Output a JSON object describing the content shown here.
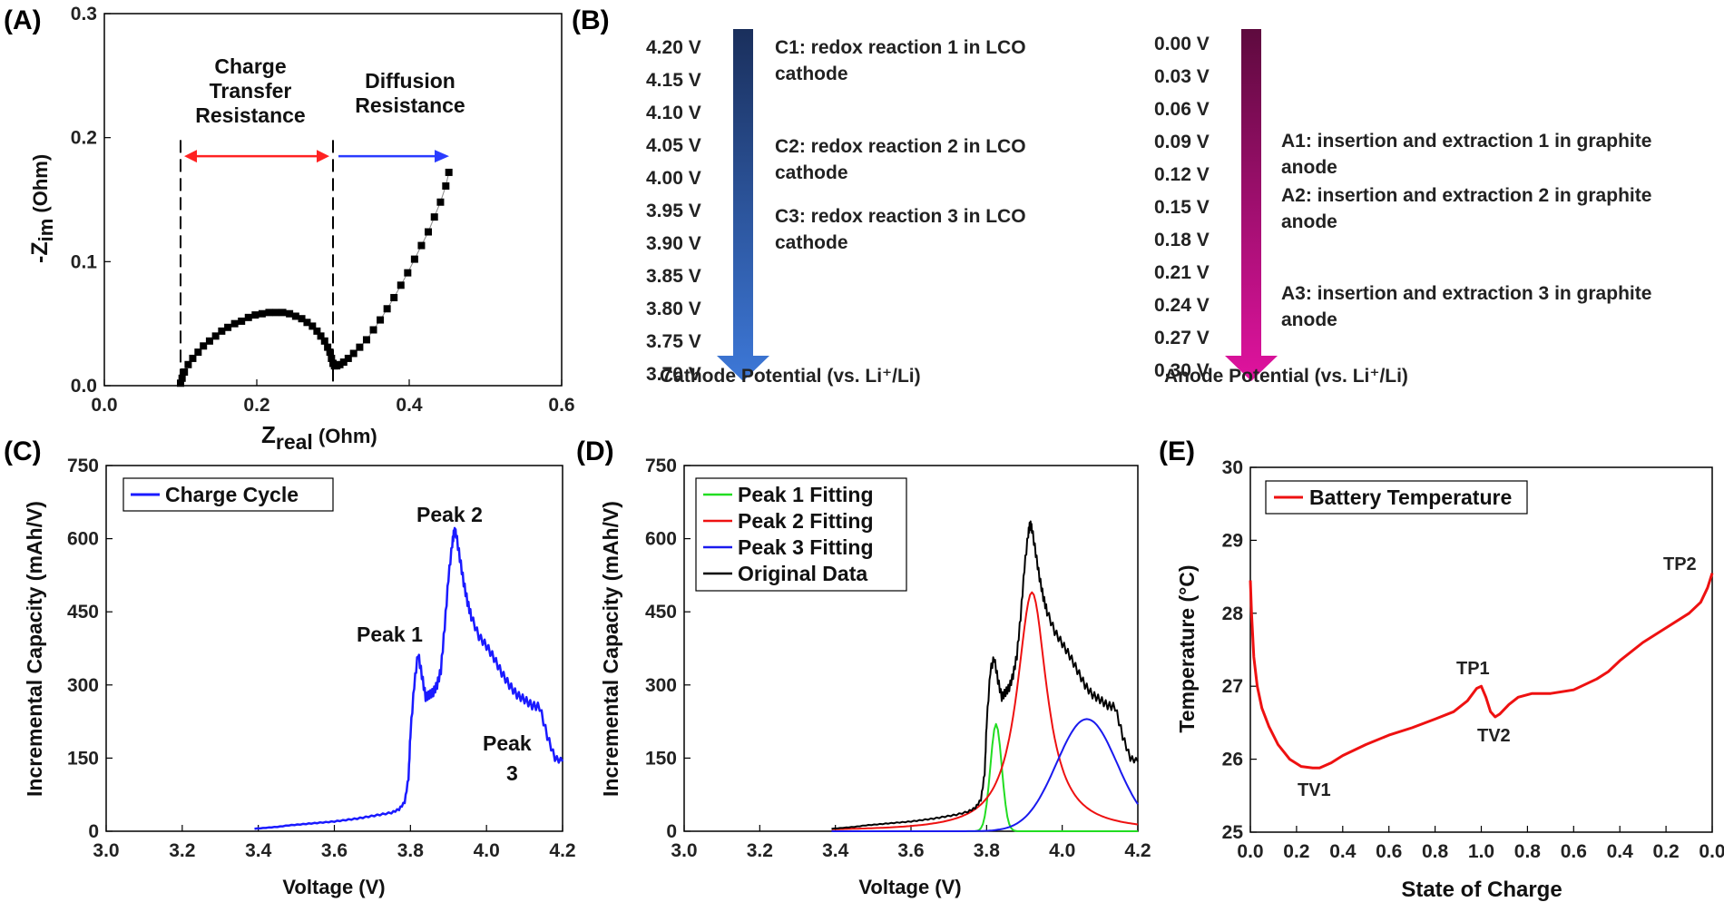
{
  "panels": {
    "A": {
      "label": "(A)",
      "type": "scatter",
      "xlabel_main": "Z",
      "xlabel_sub": "real",
      "xlabel_unit": " (Ohm)",
      "ylabel_main": "-Z",
      "ylabel_sub": "im",
      "ylabel_unit": " (Ohm)",
      "xticks": [
        "0.0",
        "0.2",
        "0.4",
        "0.6"
      ],
      "yticks": [
        "0.0",
        "0.1",
        "0.2",
        "0.3"
      ],
      "region1": "Charge Transfer Resistance",
      "region1_lines": [
        "Charge",
        "Transfer",
        "Resistance"
      ],
      "region2_lines": [
        "Diffusion",
        "Resistance"
      ],
      "region1_color": "#ff2222",
      "region2_color": "#2a3cff"
    },
    "B": {
      "label": "(B)",
      "cathode_values": [
        "4.20 V",
        "4.15 V",
        "4.10 V",
        "4.05 V",
        "4.00 V",
        "3.95 V",
        "3.90 V",
        "3.85 V",
        "3.80 V",
        "3.75 V",
        "3.70 V"
      ],
      "anode_values": [
        "0.00 V",
        "0.03 V",
        "0.06 V",
        "0.09 V",
        "0.12 V",
        "0.15 V",
        "0.18 V",
        "0.21 V",
        "0.24 V",
        "0.27 V",
        "0.30 V"
      ],
      "cathode_notes": [
        [
          "C1: redox reaction 1 in LCO",
          "cathode"
        ],
        [
          "C2: redox reaction 2 in LCO",
          "cathode"
        ],
        [
          "C3: redox reaction 3 in LCO",
          "cathode"
        ]
      ],
      "anode_notes": [
        [
          "A1: insertion and extraction 1 in graphite",
          "anode"
        ],
        [
          "A2: insertion and extraction 2 in graphite",
          "anode"
        ],
        [
          "A3: insertion and extraction 3 in graphite",
          "anode"
        ]
      ],
      "cathode_caption": "Cathode Potential (vs. Li⁺/Li)",
      "anode_caption": "Anode Potential (vs. Li⁺/Li)",
      "cathode_colors": [
        "#1a2f5c",
        "#3d78d8"
      ],
      "anode_colors": [
        "#5e0a3e",
        "#e0139f"
      ]
    },
    "C": {
      "label": "(C)",
      "xlabel": "Voltage (V)",
      "ylabel": "Incremental Capacity (mAh/V)",
      "xticks": [
        "3.0",
        "3.2",
        "3.4",
        "3.6",
        "3.8",
        "4.0",
        "4.2"
      ],
      "yticks": [
        "0",
        "150",
        "300",
        "450",
        "600",
        "750"
      ],
      "legend": "Charge Cycle",
      "peak1": "Peak 1",
      "peak2": "Peak 2",
      "peak3_a": "Peak",
      "peak3_b": "3",
      "line_color": "#1a1aff"
    },
    "D": {
      "label": "(D)",
      "xlabel": "Voltage (V)",
      "ylabel": "Incremental Capacity (mAh/V)",
      "xticks": [
        "3.0",
        "3.2",
        "3.4",
        "3.6",
        "3.8",
        "4.0",
        "4.2"
      ],
      "yticks": [
        "0",
        "150",
        "300",
        "450",
        "600",
        "750"
      ],
      "legend": [
        "Peak 1 Fitting",
        "Peak 2 Fitting",
        "Peak 3 Fitting",
        "Original Data"
      ],
      "colors": [
        "#22dd22",
        "#ee1111",
        "#1a1aee",
        "#000000"
      ]
    },
    "E": {
      "label": "(E)",
      "xlabel": "State of Charge",
      "ylabel": "Temperature (°C)",
      "xticks": [
        "0.0",
        "0.2",
        "0.4",
        "0.6",
        "0.8",
        "1.0",
        "0.8",
        "0.6",
        "0.4",
        "0.2",
        "0.0"
      ],
      "yticks": [
        "25",
        "26",
        "27",
        "28",
        "29",
        "30"
      ],
      "legend": "Battery Temperature",
      "tv1": "TV1",
      "tp1": "TP1",
      "tv2": "TV2",
      "tp2": "TP2",
      "line_color": "#ee1111"
    }
  },
  "chart_data": [
    {
      "panel": "A",
      "type": "scatter",
      "title": "",
      "xlabel": "Zreal (Ohm)",
      "ylabel": "-Zim (Ohm)",
      "xlim": [
        0,
        0.6
      ],
      "ylim": [
        0,
        0.3
      ],
      "x": [
        0.1,
        0.102,
        0.105,
        0.11,
        0.116,
        0.123,
        0.13,
        0.138,
        0.146,
        0.154,
        0.162,
        0.171,
        0.18,
        0.189,
        0.198,
        0.207,
        0.216,
        0.225,
        0.234,
        0.243,
        0.251,
        0.259,
        0.266,
        0.273,
        0.279,
        0.284,
        0.289,
        0.293,
        0.296,
        0.298,
        0.3,
        0.302,
        0.305,
        0.309,
        0.314,
        0.32,
        0.327,
        0.335,
        0.344,
        0.353,
        0.362,
        0.371,
        0.38,
        0.389,
        0.398,
        0.407,
        0.416,
        0.425,
        0.433,
        0.441,
        0.448,
        0.452
      ],
      "y": [
        0.002,
        0.006,
        0.011,
        0.017,
        0.022,
        0.027,
        0.032,
        0.036,
        0.04,
        0.044,
        0.047,
        0.05,
        0.052,
        0.055,
        0.057,
        0.058,
        0.059,
        0.059,
        0.059,
        0.058,
        0.056,
        0.054,
        0.051,
        0.048,
        0.044,
        0.04,
        0.036,
        0.031,
        0.027,
        0.022,
        0.018,
        0.016,
        0.016,
        0.017,
        0.019,
        0.022,
        0.026,
        0.031,
        0.037,
        0.045,
        0.053,
        0.062,
        0.071,
        0.081,
        0.091,
        0.102,
        0.113,
        0.124,
        0.136,
        0.148,
        0.161,
        0.172
      ],
      "vlines": [
        0.1,
        0.3
      ],
      "arrows": [
        {
          "from": 0.1,
          "to": 0.3,
          "y": 0.185,
          "double": true
        },
        {
          "from": 0.3,
          "to": 0.45,
          "y": 0.185,
          "double": false
        }
      ]
    },
    {
      "panel": "C",
      "type": "line",
      "xlabel": "Voltage (V)",
      "ylabel": "Incremental Capacity (mAh/V)",
      "xlim": [
        3.0,
        4.2
      ],
      "ylim": [
        0,
        750
      ],
      "series": [
        {
          "name": "Charge Cycle",
          "x": [
            3.39,
            3.42,
            3.45,
            3.48,
            3.51,
            3.54,
            3.57,
            3.6,
            3.63,
            3.66,
            3.69,
            3.72,
            3.75,
            3.77,
            3.785,
            3.795,
            3.8,
            3.81,
            3.82,
            3.83,
            3.84,
            3.85,
            3.86,
            3.87,
            3.88,
            3.89,
            3.9,
            3.91,
            3.915,
            3.92,
            3.93,
            3.94,
            3.95,
            3.96,
            3.98,
            4.0,
            4.02,
            4.04,
            4.06,
            4.08,
            4.1,
            4.12,
            4.14,
            4.16,
            4.18,
            4.2
          ],
          "y": [
            5,
            7,
            9,
            12,
            14,
            16,
            18,
            20,
            23,
            26,
            30,
            34,
            38,
            45,
            60,
            110,
            200,
            300,
            365,
            320,
            275,
            280,
            285,
            300,
            330,
            420,
            520,
            590,
            615,
            610,
            560,
            510,
            470,
            440,
            400,
            380,
            355,
            325,
            300,
            280,
            270,
            258,
            255,
            195,
            150,
            143
          ]
        }
      ]
    },
    {
      "panel": "D",
      "type": "line",
      "xlabel": "Voltage (V)",
      "ylabel": "Incremental Capacity (mAh/V)",
      "xlim": [
        3.0,
        4.2
      ],
      "ylim": [
        0,
        750
      ],
      "series": [
        {
          "name": "Peak 1 Fitting",
          "gauss": [
            220,
            3.825,
            0.015
          ]
        },
        {
          "name": "Peak 2 Fitting",
          "lorentz": [
            490,
            3.92,
            0.048
          ]
        },
        {
          "name": "Peak 3 Fitting",
          "gauss": [
            230,
            4.065,
            0.08
          ]
        },
        {
          "name": "Original Data",
          "x": [
            3.39,
            3.42,
            3.45,
            3.48,
            3.51,
            3.54,
            3.57,
            3.6,
            3.63,
            3.66,
            3.69,
            3.72,
            3.75,
            3.77,
            3.785,
            3.795,
            3.8,
            3.81,
            3.82,
            3.83,
            3.84,
            3.85,
            3.86,
            3.87,
            3.88,
            3.89,
            3.9,
            3.91,
            3.915,
            3.92,
            3.93,
            3.94,
            3.95,
            3.96,
            3.98,
            4.0,
            4.02,
            4.04,
            4.06,
            4.08,
            4.1,
            4.12,
            4.14,
            4.16,
            4.18,
            4.2
          ],
          "y": [
            5,
            7,
            9,
            12,
            14,
            16,
            18,
            20,
            23,
            26,
            30,
            34,
            40,
            48,
            65,
            120,
            220,
            330,
            355,
            310,
            275,
            285,
            295,
            320,
            360,
            440,
            540,
            610,
            630,
            620,
            570,
            520,
            480,
            450,
            410,
            385,
            360,
            330,
            300,
            280,
            270,
            258,
            255,
            195,
            150,
            143
          ]
        }
      ]
    },
    {
      "panel": "E",
      "type": "line",
      "xlabel": "State of Charge",
      "ylabel": "Temperature (°C)",
      "xlim": [
        0,
        2
      ],
      "ylim": [
        25,
        30
      ],
      "xtick_positions": [
        0,
        0.2,
        0.4,
        0.6,
        0.8,
        1.0,
        1.2,
        1.4,
        1.6,
        1.8,
        2.0
      ],
      "series": [
        {
          "name": "Battery Temperature",
          "x": [
            0.0,
            0.005,
            0.015,
            0.03,
            0.05,
            0.08,
            0.12,
            0.17,
            0.22,
            0.27,
            0.3,
            0.35,
            0.4,
            0.5,
            0.6,
            0.7,
            0.8,
            0.88,
            0.94,
            0.98,
            1.0,
            1.02,
            1.04,
            1.06,
            1.08,
            1.12,
            1.16,
            1.22,
            1.3,
            1.4,
            1.5,
            1.55,
            1.6,
            1.7,
            1.8,
            1.9,
            1.95,
            1.98,
            2.0
          ],
          "y": [
            28.45,
            28.0,
            27.4,
            27.0,
            26.7,
            26.45,
            26.2,
            26.0,
            25.9,
            25.88,
            25.88,
            25.95,
            26.05,
            26.2,
            26.33,
            26.43,
            26.55,
            26.65,
            26.8,
            26.97,
            27.0,
            26.85,
            26.65,
            26.58,
            26.62,
            26.75,
            26.85,
            26.9,
            26.9,
            26.95,
            27.1,
            27.2,
            27.35,
            27.6,
            27.8,
            28.0,
            28.15,
            28.35,
            28.55
          ]
        }
      ],
      "annotations": [
        "TV1",
        "TP1",
        "TV2",
        "TP2"
      ]
    }
  ]
}
